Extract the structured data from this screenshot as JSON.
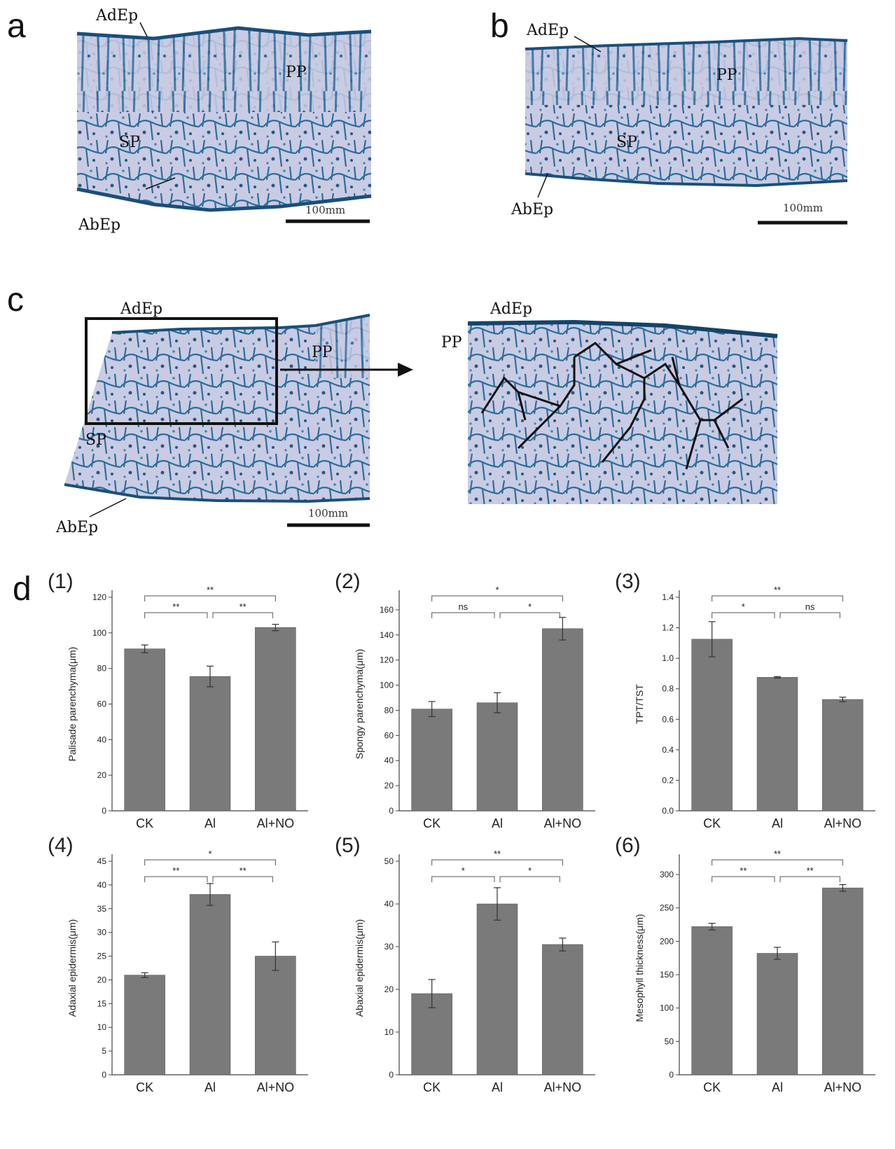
{
  "panels": {
    "a": {
      "letter": "a",
      "labels": {
        "adep": "AdEp",
        "pp": "PP",
        "sp": "SP",
        "abep": "AbEp"
      },
      "scale": "100mm"
    },
    "b": {
      "letter": "b",
      "labels": {
        "adep": "AdEp",
        "pp": "PP",
        "sp": "SP",
        "abep": "AbEp"
      },
      "scale": "100mm"
    },
    "c": {
      "letter": "c",
      "labels": {
        "adep": "AdEp",
        "pp": "PP",
        "sp": "SP",
        "abep": "AbEp"
      },
      "zoom_labels": {
        "adep": "AdEp",
        "pp": "PP"
      },
      "scale": "100mm"
    },
    "d": {
      "letter": "d"
    }
  },
  "colors": {
    "bar": "#7a7a7a",
    "axis": "#444444",
    "tissue_bg": "#c9cbe3",
    "stain": "#2a6e9e"
  },
  "chart_data": [
    {
      "type": "bar",
      "index": "(1)",
      "ylabel": "Palisade parenchyma(μm)",
      "categories": [
        "CK",
        "Al",
        "Al+NO"
      ],
      "values": [
        91,
        75.5,
        103
      ],
      "errors": [
        2.2,
        5.8,
        1.8
      ],
      "ylim": [
        0,
        120
      ],
      "yticks": [
        "0",
        "20",
        "40",
        "60",
        "80",
        "100",
        "120"
      ],
      "significance": [
        {
          "from": 0,
          "to": 1,
          "label": "**"
        },
        {
          "from": 1,
          "to": 2,
          "label": "**"
        },
        {
          "from": 0,
          "to": 2,
          "label": "**"
        }
      ]
    },
    {
      "type": "bar",
      "index": "(2)",
      "ylabel": "Spongy parenchyma(μm)",
      "categories": [
        "CK",
        "Al",
        "Al+NO"
      ],
      "values": [
        81,
        86,
        145
      ],
      "errors": [
        6,
        8,
        9
      ],
      "ylim": [
        0,
        170
      ],
      "yticks": [
        "0",
        "20",
        "40",
        "60",
        "80",
        "100",
        "120",
        "140",
        "160"
      ],
      "significance": [
        {
          "from": 0,
          "to": 1,
          "label": "ns"
        },
        {
          "from": 1,
          "to": 2,
          "label": "*"
        },
        {
          "from": 0,
          "to": 2,
          "label": "*"
        }
      ]
    },
    {
      "type": "bar",
      "index": "(3)",
      "ylabel": "TPT/TST",
      "categories": [
        "CK",
        "Al",
        "Al+NO"
      ],
      "values": [
        1.125,
        0.875,
        0.73
      ],
      "errors": [
        0.115,
        0.005,
        0.015
      ],
      "ylim": [
        0,
        1.4
      ],
      "yticks": [
        "0.0",
        "0.2",
        "0.4",
        "0.6",
        "0.8",
        "1.0",
        "1.2",
        "1.4"
      ],
      "significance": [
        {
          "from": 0,
          "to": 1,
          "label": "*"
        },
        {
          "from": 1,
          "to": 2,
          "label": "ns"
        },
        {
          "from": 0,
          "to": 2,
          "label": "**"
        }
      ]
    },
    {
      "type": "bar",
      "index": "(4)",
      "ylabel": "Adaxial epidermis(μm)",
      "categories": [
        "CK",
        "Al",
        "Al+NO"
      ],
      "values": [
        21,
        38,
        25
      ],
      "errors": [
        0.5,
        2.3,
        3
      ],
      "ylim": [
        0,
        45
      ],
      "yticks": [
        "0",
        "5",
        "10",
        "15",
        "20",
        "25",
        "30",
        "35",
        "40",
        "45"
      ],
      "significance": [
        {
          "from": 0,
          "to": 1,
          "label": "**"
        },
        {
          "from": 1,
          "to": 2,
          "label": "**"
        },
        {
          "from": 0,
          "to": 2,
          "label": "*"
        }
      ]
    },
    {
      "type": "bar",
      "index": "(5)",
      "ylabel": "Abaxial epidermis(μm)",
      "categories": [
        "CK",
        "Al",
        "Al+NO"
      ],
      "values": [
        19,
        40,
        30.5
      ],
      "errors": [
        3.3,
        3.8,
        1.5
      ],
      "ylim": [
        0,
        50
      ],
      "yticks": [
        "0",
        "10",
        "20",
        "30",
        "40",
        "50"
      ],
      "significance": [
        {
          "from": 0,
          "to": 1,
          "label": "*"
        },
        {
          "from": 1,
          "to": 2,
          "label": "*"
        },
        {
          "from": 0,
          "to": 2,
          "label": "**"
        }
      ]
    },
    {
      "type": "bar",
      "index": "(6)",
      "ylabel": "Mesophyll thickness(μm)",
      "categories": [
        "CK",
        "Al",
        "Al+NO"
      ],
      "values": [
        222,
        182,
        280
      ],
      "errors": [
        5,
        9,
        5
      ],
      "ylim": [
        0,
        320
      ],
      "yticks": [
        "0",
        "50",
        "100",
        "150",
        "200",
        "250",
        "300"
      ],
      "significance": [
        {
          "from": 0,
          "to": 1,
          "label": "**"
        },
        {
          "from": 1,
          "to": 2,
          "label": "**"
        },
        {
          "from": 0,
          "to": 2,
          "label": "**"
        }
      ]
    }
  ]
}
